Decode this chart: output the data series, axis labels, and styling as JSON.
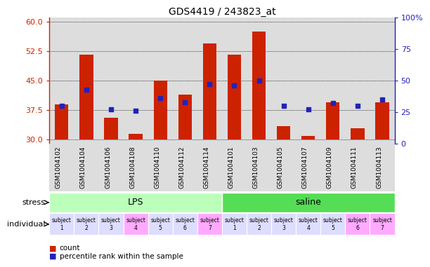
{
  "title": "GDS4419 / 243823_at",
  "samples": [
    "GSM1004102",
    "GSM1004104",
    "GSM1004106",
    "GSM1004108",
    "GSM1004110",
    "GSM1004112",
    "GSM1004114",
    "GSM1004101",
    "GSM1004103",
    "GSM1004105",
    "GSM1004107",
    "GSM1004109",
    "GSM1004111",
    "GSM1004113"
  ],
  "counts": [
    39.0,
    51.5,
    35.5,
    31.5,
    45.0,
    41.5,
    54.5,
    51.5,
    57.5,
    33.5,
    31.0,
    39.5,
    33.0,
    39.5
  ],
  "percentile_rank": [
    30,
    43,
    27,
    26,
    36,
    33,
    47,
    46,
    50,
    30,
    27,
    32,
    30,
    35
  ],
  "bar_bottom": 30,
  "ylim_left": [
    29,
    61
  ],
  "ylim_right": [
    0,
    100
  ],
  "yticks_left": [
    30,
    37.5,
    45,
    52.5,
    60
  ],
  "yticks_right": [
    0,
    25,
    50,
    75,
    100
  ],
  "bar_color": "#cc2200",
  "dot_color": "#2222bb",
  "stress_groups": [
    {
      "label": "LPS",
      "start": 0,
      "end": 7,
      "color": "#bbffbb"
    },
    {
      "label": "saline",
      "start": 7,
      "end": 14,
      "color": "#55dd55"
    }
  ],
  "subject_labels": [
    "subject\n1",
    "subject\n2",
    "subject\n3",
    "subject\n4",
    "subject\n5",
    "subject\n6",
    "subject\n7",
    "subject\n1",
    "subject\n2",
    "subject\n3",
    "subject\n4",
    "subject\n5",
    "subject\n6",
    "subject\n7"
  ],
  "subject_colors": [
    "#ddddff",
    "#ddddff",
    "#ddddff",
    "#ffaaff",
    "#ddddff",
    "#ddddff",
    "#ffaaff",
    "#ddddff",
    "#ddddff",
    "#ddddff",
    "#ddddff",
    "#ddddff",
    "#ffaaff",
    "#ffaaff"
  ],
  "tick_color_left": "#cc2200",
  "tick_color_right": "#2222bb",
  "plot_bg": "#dddddd",
  "bar_width": 0.55
}
